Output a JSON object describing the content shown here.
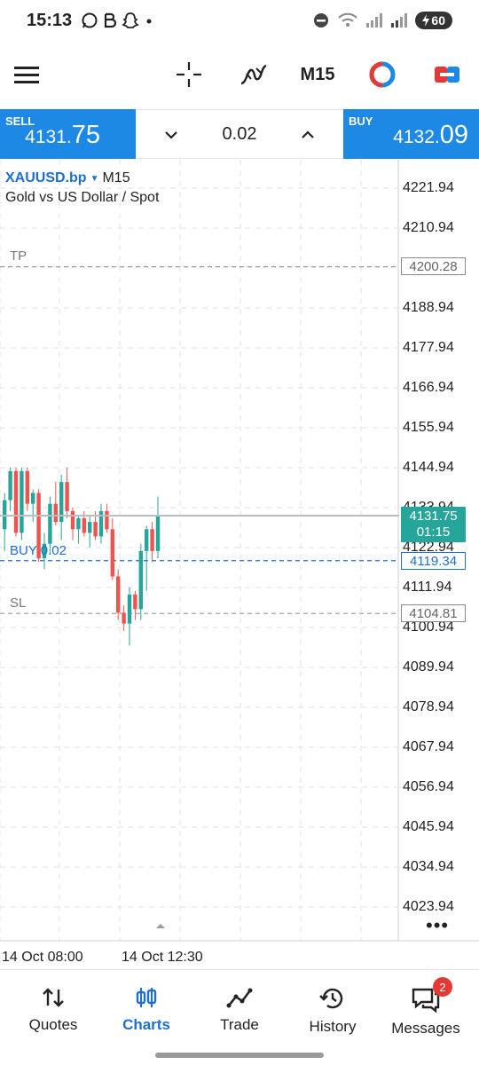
{
  "status_bar": {
    "time": "15:13",
    "battery": "60"
  },
  "toolbar": {
    "timeframe": "M15"
  },
  "trade": {
    "sell_label": "SELL",
    "sell_price_main": "4131.",
    "sell_price_big": "75",
    "buy_label": "BUY",
    "buy_price_main": "4132.",
    "buy_price_big": "09",
    "volume": "0.02"
  },
  "chart": {
    "symbol": "XAUUSD.bp",
    "symbol_arrow": "▼",
    "timeframe": "M15",
    "description": "Gold vs US Dollar / Spot",
    "price_labels": [
      "4221.94",
      "4210.94",
      "4200.28",
      "4188.94",
      "4177.94",
      "4166.94",
      "4155.94",
      "4144.94",
      "4133.94",
      "4122.94",
      "4111.94",
      "4100.94",
      "4089.94",
      "4078.94",
      "4067.94",
      "4056.94",
      "4045.94",
      "4034.94",
      "4023.94"
    ],
    "tp_label": "TP",
    "tp_price": "4200.28",
    "sl_label": "SL",
    "sl_price": "4104.81",
    "position_label": "BUY 0.02",
    "position_price": "4119.34",
    "current_price": "4131.75",
    "countdown": "01:15",
    "time_labels": [
      "14 Oct 08:00",
      "14 Oct 12:30"
    ],
    "bull_color": "#26a69a",
    "bear_color": "#ef5350"
  },
  "chart_data": {
    "type": "candlestick",
    "symbol": "XAUUSD.bp",
    "timeframe": "M15",
    "ylim": [
      4017.94,
      4226.94
    ],
    "x_ticks": [
      "14 Oct 08:00",
      "14 Oct 12:30"
    ],
    "candles": [
      {
        "o": 4128,
        "h": 4138,
        "l": 4122,
        "c": 4136
      },
      {
        "o": 4136,
        "h": 4145,
        "l": 4133,
        "c": 4144
      },
      {
        "o": 4144,
        "h": 4145,
        "l": 4126,
        "c": 4127
      },
      {
        "o": 4127,
        "h": 4145,
        "l": 4125,
        "c": 4144
      },
      {
        "o": 4144,
        "h": 4145,
        "l": 4133,
        "c": 4135
      },
      {
        "o": 4135,
        "h": 4139,
        "l": 4130,
        "c": 4138
      },
      {
        "o": 4138,
        "h": 4139,
        "l": 4119,
        "c": 4120
      },
      {
        "o": 4120,
        "h": 4127,
        "l": 4117,
        "c": 4124
      },
      {
        "o": 4124,
        "h": 4137,
        "l": 4121,
        "c": 4135
      },
      {
        "o": 4135,
        "h": 4141,
        "l": 4129,
        "c": 4130
      },
      {
        "o": 4130,
        "h": 4143,
        "l": 4125,
        "c": 4141
      },
      {
        "o": 4141,
        "h": 4145,
        "l": 4131,
        "c": 4133
      },
      {
        "o": 4133,
        "h": 4134,
        "l": 4125,
        "c": 4128
      },
      {
        "o": 4128,
        "h": 4132,
        "l": 4124,
        "c": 4131
      },
      {
        "o": 4131,
        "h": 4133,
        "l": 4126,
        "c": 4127
      },
      {
        "o": 4127,
        "h": 4132,
        "l": 4123,
        "c": 4130
      },
      {
        "o": 4130,
        "h": 4133,
        "l": 4125,
        "c": 4126
      },
      {
        "o": 4126,
        "h": 4135,
        "l": 4124,
        "c": 4133
      },
      {
        "o": 4133,
        "h": 4135,
        "l": 4127,
        "c": 4128
      },
      {
        "o": 4128,
        "h": 4131,
        "l": 4114,
        "c": 4115
      },
      {
        "o": 4115,
        "h": 4117,
        "l": 4103,
        "c": 4105
      },
      {
        "o": 4105,
        "h": 4107,
        "l": 4100,
        "c": 4102
      },
      {
        "o": 4102,
        "h": 4112,
        "l": 4096,
        "c": 4110
      },
      {
        "o": 4110,
        "h": 4111,
        "l": 4103,
        "c": 4106
      },
      {
        "o": 4106,
        "h": 4124,
        "l": 4103,
        "c": 4122
      },
      {
        "o": 4122,
        "h": 4129,
        "l": 4111,
        "c": 4128
      },
      {
        "o": 4128,
        "h": 4130,
        "l": 4119,
        "c": 4122
      },
      {
        "o": 4122,
        "h": 4137,
        "l": 4120,
        "c": 4131.75
      }
    ]
  },
  "nav": {
    "items": [
      {
        "label": "Quotes"
      },
      {
        "label": "Charts"
      },
      {
        "label": "Trade"
      },
      {
        "label": "History"
      },
      {
        "label": "Messages"
      }
    ],
    "messages_badge": "2"
  }
}
